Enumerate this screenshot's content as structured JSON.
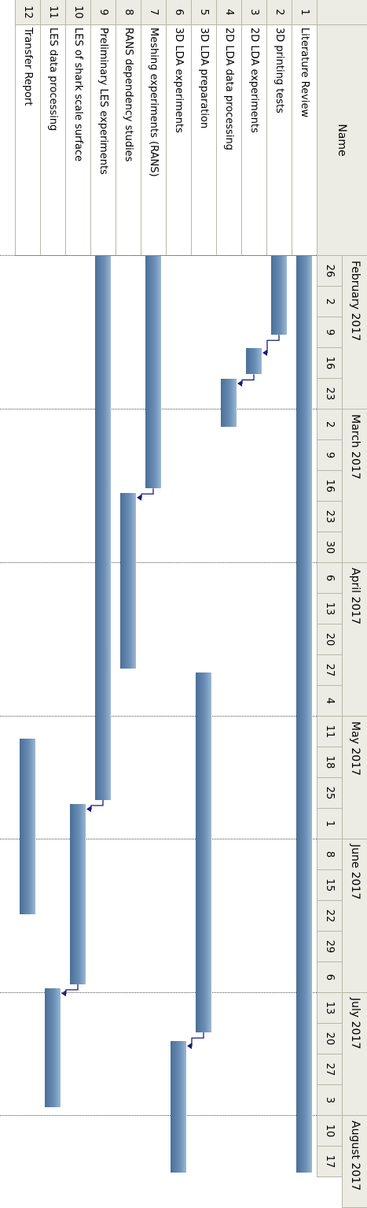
{
  "header": {
    "id_label": "",
    "name_label": "Name"
  },
  "colors": {
    "bar": "#5f86b0",
    "link": "#1a1a7a",
    "header": "#ecece4"
  },
  "timeline": {
    "months": [
      {
        "label": "February 2017",
        "start_week": 0,
        "span": 5
      },
      {
        "label": "March 2017",
        "start_week": 5,
        "span": 5
      },
      {
        "label": "April 2017",
        "start_week": 10,
        "span": 5
      },
      {
        "label": "May 2017",
        "start_week": 15,
        "span": 4
      },
      {
        "label": "June 2017",
        "start_week": 19,
        "span": 5
      },
      {
        "label": "July 2017",
        "start_week": 24,
        "span": 4
      },
      {
        "label": "August 2017",
        "start_week": 28,
        "span": 3
      }
    ],
    "weeks": [
      "26",
      "2",
      "9",
      "16",
      "23",
      "2",
      "9",
      "16",
      "23",
      "30",
      "6",
      "13",
      "20",
      "27",
      "4",
      "11",
      "18",
      "25",
      "1",
      "8",
      "15",
      "22",
      "29",
      "6",
      "13",
      "20",
      "27",
      "3",
      "10",
      "17"
    ]
  },
  "chart_data": {
    "type": "gantt",
    "tasks": [
      {
        "id": "1",
        "name": "Literature Review",
        "start": "2017-01-26",
        "end": "2017-08-23"
      },
      {
        "id": "2",
        "name": "3D printing tests",
        "start": "2017-01-26",
        "end": "2017-02-13"
      },
      {
        "id": "3",
        "name": "2D LDA experiments",
        "start": "2017-02-16",
        "end": "2017-02-22"
      },
      {
        "id": "4",
        "name": "2D LDA data processing",
        "start": "2017-02-23",
        "end": "2017-03-06"
      },
      {
        "id": "5",
        "name": "3D LDA preparation",
        "start": "2017-05-01",
        "end": "2017-07-22"
      },
      {
        "id": "6",
        "name": "3D LDA experiments",
        "start": "2017-07-24",
        "end": "2017-08-23"
      },
      {
        "id": "7",
        "name": "Meshing experiments (RANS)",
        "start": "2017-01-26",
        "end": "2017-03-20"
      },
      {
        "id": "8",
        "name": "RANS dependency studies",
        "start": "2017-03-21",
        "end": "2017-04-30"
      },
      {
        "id": "9",
        "name": "Preliminary LES experiments",
        "start": "2017-01-26",
        "end": "2017-05-30"
      },
      {
        "id": "10",
        "name": "LES of shark scale surface",
        "start": "2017-05-31",
        "end": "2017-07-11"
      },
      {
        "id": "11",
        "name": "LES data processing",
        "start": "2017-07-12",
        "end": "2017-08-08"
      },
      {
        "id": "12",
        "name": "Transfer Report",
        "start": "2017-05-16",
        "end": "2017-06-25"
      }
    ],
    "dependencies": [
      [
        2,
        3
      ],
      [
        3,
        4
      ],
      [
        7,
        8
      ],
      [
        9,
        10
      ],
      [
        10,
        11
      ],
      [
        5,
        6
      ]
    ]
  }
}
